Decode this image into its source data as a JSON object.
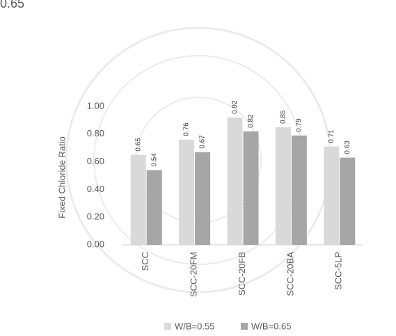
{
  "chart_data": {
    "type": "bar",
    "annotations": [
      "0.65"
    ],
    "y_label": "Fixed Chloride Ratio",
    "categories": [
      "SCC",
      "SCC-20FM",
      "SCC-20FB",
      "SCC-20BA",
      "SCC-5LP"
    ],
    "series": [
      {
        "name": "W/B=0.55",
        "color": "#d9d9d9",
        "values": [
          0.65,
          0.76,
          0.92,
          0.85,
          0.71
        ]
      },
      {
        "name": "W/B=0.65",
        "color": "#a6a6a6",
        "values": [
          0.54,
          0.67,
          0.82,
          0.79,
          0.63
        ]
      }
    ],
    "ylim": [
      0,
      1
    ],
    "yticks": [
      {
        "value": 0,
        "label": "0.00"
      },
      {
        "value": 0.2,
        "label": "0.20"
      },
      {
        "value": 0.4,
        "label": "0.40"
      },
      {
        "value": 0.6,
        "label": "0.60"
      },
      {
        "value": 0.8,
        "label": "0.80"
      },
      {
        "value": 1,
        "label": "1.00"
      }
    ],
    "grid": false,
    "legend": "bottom"
  }
}
